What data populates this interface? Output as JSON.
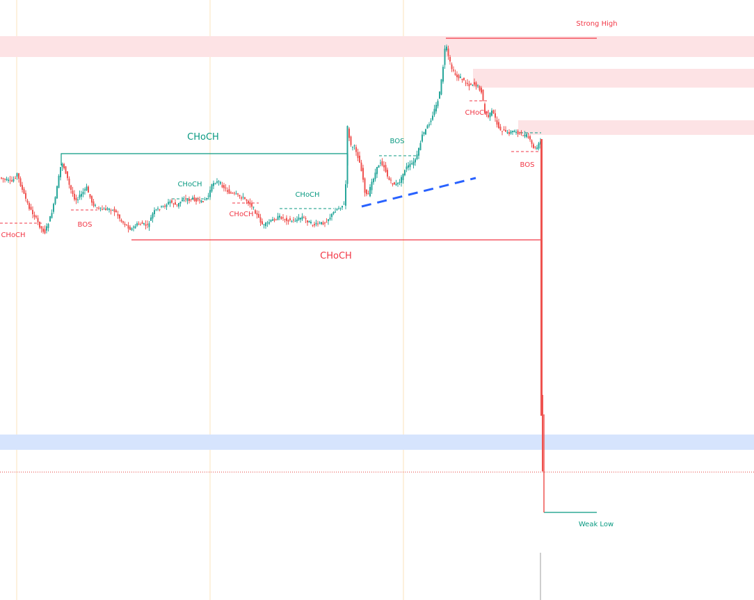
{
  "chart_data": {
    "type": "candlestick",
    "colors": {
      "up": "#26a69a",
      "down": "#ef5350",
      "bear_line": "#f23645",
      "bull_line": "#089981",
      "supply_zone": "#fde3e5",
      "demand_zone": "#d6e4fd",
      "trendline": "#2962ff",
      "session_line": "#fdf1dd",
      "current_price": "#e53935"
    },
    "labels": {
      "strong_high": "Strong High",
      "weak_low": "Weak Low",
      "choch_major_bull": "CHoCH",
      "choch_major_bear": "CHoCH",
      "choch_left": "CHoCH",
      "bos_left": "BOS",
      "choch_mid1": "CHoCH",
      "choch_mid2": "CHoCH",
      "choch_mid3": "CHoCH",
      "bos_mid": "BOS",
      "choch_right": "CHoCH",
      "bos_right": "BOS"
    }
  }
}
